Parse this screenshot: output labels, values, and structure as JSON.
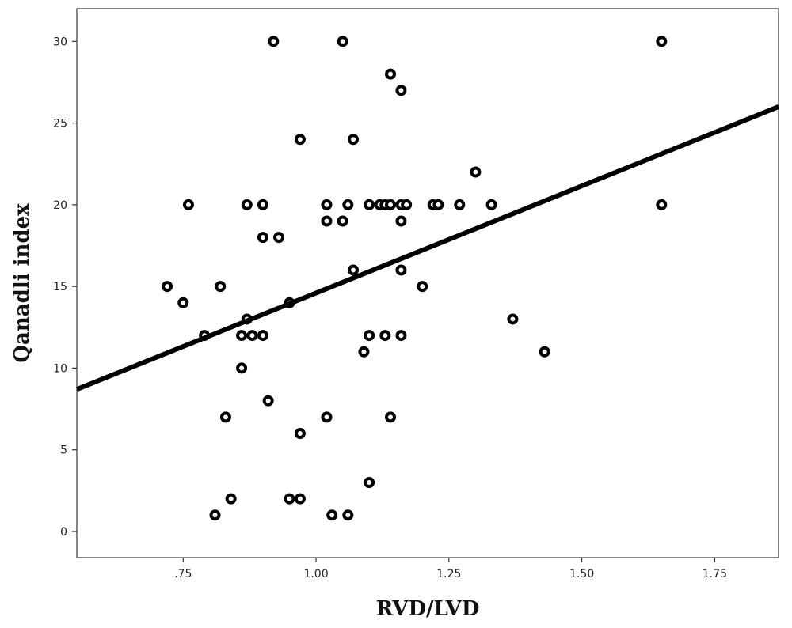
{
  "chart_data": {
    "type": "scatter",
    "title": "",
    "xlabel": "RVD/LVD",
    "ylabel": "Qanadli index",
    "xlim": [
      0.55,
      1.87
    ],
    "ylim": [
      -1.6,
      32
    ],
    "x_ticks": [
      {
        "value": 0.75,
        "label": ".75"
      },
      {
        "value": 1.0,
        "label": "1.00"
      },
      {
        "value": 1.25,
        "label": "1.25"
      },
      {
        "value": 1.5,
        "label": "1.50"
      },
      {
        "value": 1.75,
        "label": "1.75"
      }
    ],
    "y_ticks": [
      {
        "value": 0,
        "label": "0"
      },
      {
        "value": 5,
        "label": "5"
      },
      {
        "value": 10,
        "label": "10"
      },
      {
        "value": 15,
        "label": "15"
      },
      {
        "value": 20,
        "label": "20"
      },
      {
        "value": 25,
        "label": "25"
      },
      {
        "value": 30,
        "label": "30"
      }
    ],
    "grid": false,
    "points": [
      {
        "x": 0.92,
        "y": 30
      },
      {
        "x": 1.05,
        "y": 30
      },
      {
        "x": 1.65,
        "y": 30
      },
      {
        "x": 1.14,
        "y": 28
      },
      {
        "x": 1.16,
        "y": 27
      },
      {
        "x": 0.97,
        "y": 24
      },
      {
        "x": 1.07,
        "y": 24
      },
      {
        "x": 1.3,
        "y": 22
      },
      {
        "x": 0.76,
        "y": 20
      },
      {
        "x": 0.87,
        "y": 20
      },
      {
        "x": 0.9,
        "y": 20
      },
      {
        "x": 1.02,
        "y": 20
      },
      {
        "x": 1.06,
        "y": 20
      },
      {
        "x": 1.1,
        "y": 20
      },
      {
        "x": 1.12,
        "y": 20
      },
      {
        "x": 1.13,
        "y": 20
      },
      {
        "x": 1.14,
        "y": 20
      },
      {
        "x": 1.16,
        "y": 20
      },
      {
        "x": 1.17,
        "y": 20
      },
      {
        "x": 1.22,
        "y": 20
      },
      {
        "x": 1.23,
        "y": 20
      },
      {
        "x": 1.27,
        "y": 20
      },
      {
        "x": 1.33,
        "y": 20
      },
      {
        "x": 1.65,
        "y": 20
      },
      {
        "x": 1.02,
        "y": 19
      },
      {
        "x": 1.05,
        "y": 19
      },
      {
        "x": 1.16,
        "y": 19
      },
      {
        "x": 0.9,
        "y": 18
      },
      {
        "x": 0.93,
        "y": 18
      },
      {
        "x": 1.07,
        "y": 16
      },
      {
        "x": 1.16,
        "y": 16
      },
      {
        "x": 0.72,
        "y": 15
      },
      {
        "x": 0.82,
        "y": 15
      },
      {
        "x": 1.2,
        "y": 15
      },
      {
        "x": 0.75,
        "y": 14
      },
      {
        "x": 0.95,
        "y": 14
      },
      {
        "x": 0.87,
        "y": 13
      },
      {
        "x": 1.37,
        "y": 13
      },
      {
        "x": 0.79,
        "y": 12
      },
      {
        "x": 0.86,
        "y": 12
      },
      {
        "x": 0.88,
        "y": 12
      },
      {
        "x": 0.9,
        "y": 12
      },
      {
        "x": 1.1,
        "y": 12
      },
      {
        "x": 1.13,
        "y": 12
      },
      {
        "x": 1.16,
        "y": 12
      },
      {
        "x": 1.09,
        "y": 11
      },
      {
        "x": 1.43,
        "y": 11
      },
      {
        "x": 0.86,
        "y": 10
      },
      {
        "x": 0.91,
        "y": 8
      },
      {
        "x": 0.83,
        "y": 7
      },
      {
        "x": 1.02,
        "y": 7
      },
      {
        "x": 1.14,
        "y": 7
      },
      {
        "x": 0.97,
        "y": 6
      },
      {
        "x": 1.1,
        "y": 3
      },
      {
        "x": 0.84,
        "y": 2
      },
      {
        "x": 0.95,
        "y": 2
      },
      {
        "x": 0.97,
        "y": 2
      },
      {
        "x": 0.81,
        "y": 1
      },
      {
        "x": 1.03,
        "y": 1
      },
      {
        "x": 1.06,
        "y": 1
      }
    ],
    "fit_line": {
      "x": [
        0.55,
        1.87
      ],
      "y": [
        8.7,
        26.0
      ]
    },
    "marker_color": "#000000",
    "line_color": "#000000"
  }
}
